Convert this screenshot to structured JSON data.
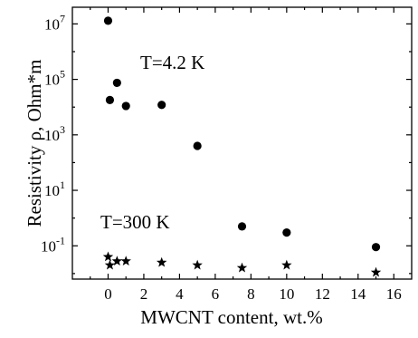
{
  "chart_data": {
    "type": "scatter",
    "xlabel": "MWCNT content, wt.%",
    "ylabel": "Resistivity ρ, Ohm*m",
    "xlim": [
      -2,
      17
    ],
    "ylim_log10": [
      -2.2,
      7.6
    ],
    "y_scale": "log",
    "x_ticks": [
      0,
      2,
      4,
      6,
      8,
      10,
      12,
      14,
      16
    ],
    "y_tick_exponents": [
      -1,
      1,
      3,
      5,
      7
    ],
    "grid": false,
    "marker_color": "#000000",
    "series": [
      {
        "marker": "circle",
        "x": [
          0,
          0.1,
          0.5,
          1,
          3,
          5,
          7.5,
          10,
          15
        ],
        "y": [
          13000000,
          18000,
          75000,
          11000,
          12000,
          400,
          0.5,
          0.3,
          0.09
        ]
      },
      {
        "marker": "star",
        "x": [
          0,
          0.1,
          0.5,
          1,
          3,
          5,
          7.5,
          10,
          15
        ],
        "y": [
          0.04,
          0.02,
          0.028,
          0.028,
          0.025,
          0.02,
          0.016,
          0.02,
          0.011
        ]
      }
    ],
    "annotations": [
      {
        "text": "T=4.2 K"
      },
      {
        "text": "T=300 K"
      }
    ]
  }
}
